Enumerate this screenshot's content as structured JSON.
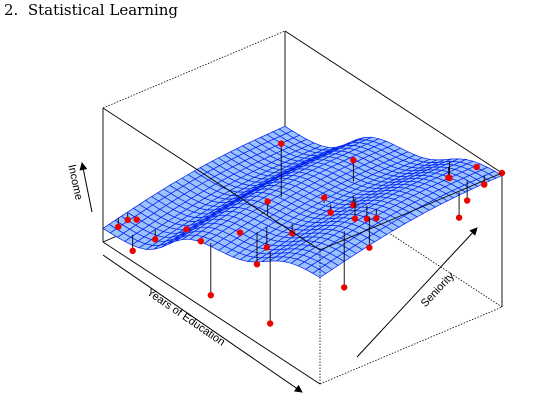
{
  "header": {
    "chapter_number": "2.",
    "chapter_title": "Statistical Learning"
  },
  "chart_data": {
    "type": "surface3d",
    "title": "",
    "xlabel": "Years of Education",
    "ylabel": "Seniority",
    "zlabel": "Income",
    "grid": true,
    "surface": {
      "description_free": true,
      "n_x": 30,
      "n_y": 30,
      "fill": "#9dc3ff",
      "line": "#0022ee"
    },
    "points": [
      {
        "x": 0.02,
        "y": 0.06,
        "z": 0.1,
        "zhat": 0.17
      },
      {
        "x": 0.03,
        "y": 0.1,
        "z": 0.14,
        "zhat": 0.19
      },
      {
        "x": 0.08,
        "y": 0.09,
        "z": 0.2,
        "zhat": 0.18
      },
      {
        "x": 0.12,
        "y": 0.02,
        "z": 0.05,
        "zhat": 0.17
      },
      {
        "x": 0.14,
        "y": 0.12,
        "z": 0.1,
        "zhat": 0.17
      },
      {
        "x": 0.2,
        "y": 0.22,
        "z": 0.18,
        "zhat": 0.17
      },
      {
        "x": 0.3,
        "y": 0.18,
        "z": 0.22,
        "zhat": 0.2
      },
      {
        "x": 0.36,
        "y": 0.55,
        "z": 0.8,
        "zhat": 0.4
      },
      {
        "x": 0.38,
        "y": 0.3,
        "z": 0.3,
        "zhat": 0.29
      },
      {
        "x": 0.44,
        "y": 0.38,
        "z": 0.55,
        "zhat": 0.45
      },
      {
        "x": 0.48,
        "y": 0.02,
        "z": 0.1,
        "zhat": 0.49
      },
      {
        "x": 0.5,
        "y": 0.25,
        "z": 0.22,
        "zhat": 0.46
      },
      {
        "x": 0.52,
        "y": 0.28,
        "z": 0.35,
        "zhat": 0.5
      },
      {
        "x": 0.55,
        "y": 0.72,
        "z": 0.78,
        "zhat": 0.62
      },
      {
        "x": 0.6,
        "y": 0.5,
        "z": 0.68,
        "zhat": 0.64
      },
      {
        "x": 0.63,
        "y": 0.5,
        "z": 0.6,
        "zhat": 0.66
      },
      {
        "x": 0.65,
        "y": 0.6,
        "z": 0.62,
        "zhat": 0.69
      },
      {
        "x": 0.62,
        "y": 0.3,
        "z": 0.55,
        "zhat": 0.62
      },
      {
        "x": 0.7,
        "y": 0.55,
        "z": 0.6,
        "zhat": 0.75
      },
      {
        "x": 0.72,
        "y": 0.06,
        "z": 0.12,
        "zhat": 0.66
      },
      {
        "x": 0.78,
        "y": 0.52,
        "z": 0.7,
        "zhat": 0.8
      },
      {
        "x": 0.8,
        "y": 0.95,
        "z": 0.78,
        "zhat": 0.9
      },
      {
        "x": 0.82,
        "y": 0.92,
        "z": 0.82,
        "zhat": 0.9
      },
      {
        "x": 0.84,
        "y": 0.5,
        "z": 0.78,
        "zhat": 0.85
      },
      {
        "x": 0.85,
        "y": 0.45,
        "z": 0.6,
        "zhat": 0.83
      },
      {
        "x": 0.86,
        "y": 0.3,
        "z": 0.4,
        "zhat": 0.82
      },
      {
        "x": 0.9,
        "y": 0.98,
        "z": 0.95,
        "zhat": 0.97
      },
      {
        "x": 0.94,
        "y": 0.88,
        "z": 0.8,
        "zhat": 0.95
      },
      {
        "x": 0.96,
        "y": 0.95,
        "z": 0.9,
        "zhat": 0.97
      },
      {
        "x": 0.97,
        "y": 0.8,
        "z": 0.75,
        "zhat": 0.94
      },
      {
        "x": 1.0,
        "y": 1.0,
        "z": 1.0,
        "zhat": 0.99
      }
    ],
    "point_color": "#ee0000"
  }
}
